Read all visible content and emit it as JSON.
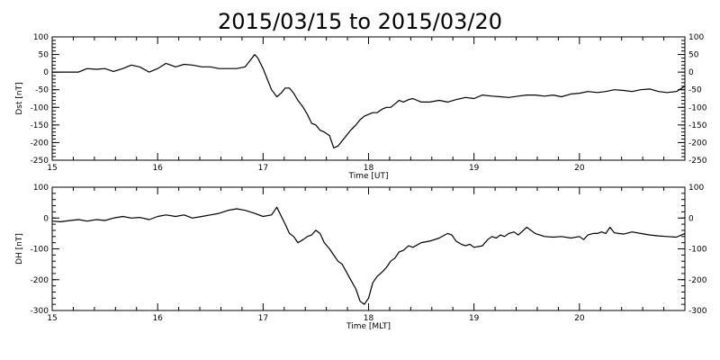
{
  "title": "2015/03/15 to 2015/03/20",
  "chart_data": [
    {
      "type": "line",
      "ylabel": "Dst [nT]",
      "xlabel": "Time [UT]",
      "xlim": [
        15,
        21
      ],
      "ylim": [
        -250,
        100
      ],
      "xticks": [
        15,
        16,
        17,
        18,
        19,
        20
      ],
      "yticks": [
        -250,
        -200,
        -150,
        -100,
        -50,
        0,
        50,
        100
      ],
      "grid": false,
      "series": [
        {
          "x": [
            15.0,
            15.08,
            15.17,
            15.25,
            15.33,
            15.42,
            15.5,
            15.58,
            15.67,
            15.75,
            15.83,
            15.92,
            16.0,
            16.08,
            16.17,
            16.25,
            16.33,
            16.42,
            16.5,
            16.58,
            16.67,
            16.75,
            16.83,
            16.92,
            16.95,
            17.0,
            17.04,
            17.08,
            17.13,
            17.17,
            17.21,
            17.25,
            17.29,
            17.33,
            17.38,
            17.42,
            17.46,
            17.5,
            17.54,
            17.58,
            17.63,
            17.67,
            17.71,
            17.75,
            17.79,
            17.83,
            17.88,
            17.92,
            17.96,
            18.0,
            18.04,
            18.08,
            18.13,
            18.17,
            18.21,
            18.25,
            18.29,
            18.33,
            18.38,
            18.42,
            18.5,
            18.58,
            18.67,
            18.75,
            18.83,
            18.92,
            19.0,
            19.08,
            19.17,
            19.25,
            19.33,
            19.42,
            19.5,
            19.58,
            19.67,
            19.75,
            19.83,
            19.92,
            20.0,
            20.08,
            20.17,
            20.25,
            20.33,
            20.42,
            20.5,
            20.58,
            20.67,
            20.75,
            20.83,
            20.92,
            21.0
          ],
          "values": [
            0,
            0,
            0,
            0,
            10,
            8,
            10,
            2,
            10,
            20,
            15,
            0,
            10,
            25,
            15,
            22,
            20,
            15,
            15,
            10,
            10,
            10,
            15,
            50,
            40,
            10,
            -20,
            -50,
            -70,
            -60,
            -45,
            -45,
            -60,
            -80,
            -100,
            -120,
            -145,
            -150,
            -165,
            -170,
            -180,
            -215,
            -210,
            -195,
            -180,
            -165,
            -150,
            -135,
            -125,
            -120,
            -115,
            -115,
            -105,
            -100,
            -100,
            -90,
            -80,
            -85,
            -78,
            -75,
            -85,
            -85,
            -80,
            -85,
            -78,
            -72,
            -75,
            -65,
            -68,
            -70,
            -72,
            -68,
            -65,
            -65,
            -68,
            -65,
            -70,
            -62,
            -60,
            -55,
            -58,
            -55,
            -50,
            -52,
            -55,
            -50,
            -48,
            -55,
            -58,
            -55,
            -40
          ]
        }
      ]
    },
    {
      "type": "line",
      "ylabel": "DH [nT]",
      "xlabel": "Time [MLT]",
      "xlim": [
        15,
        21
      ],
      "ylim": [
        -300,
        100
      ],
      "xticks": [
        15,
        16,
        17,
        18,
        19,
        20
      ],
      "yticks": [
        -300,
        -200,
        -100,
        0,
        100
      ],
      "grid": false,
      "series": [
        {
          "x": [
            15.0,
            15.08,
            15.17,
            15.25,
            15.33,
            15.42,
            15.5,
            15.58,
            15.67,
            15.75,
            15.83,
            15.92,
            16.0,
            16.08,
            16.17,
            16.25,
            16.33,
            16.42,
            16.5,
            16.58,
            16.67,
            16.75,
            16.83,
            16.92,
            17.0,
            17.08,
            17.13,
            17.21,
            17.25,
            17.29,
            17.33,
            17.38,
            17.42,
            17.46,
            17.5,
            17.54,
            17.58,
            17.63,
            17.67,
            17.71,
            17.75,
            17.79,
            17.83,
            17.88,
            17.92,
            17.96,
            18.0,
            18.04,
            18.08,
            18.13,
            18.17,
            18.21,
            18.25,
            18.29,
            18.33,
            18.38,
            18.42,
            18.5,
            18.58,
            18.67,
            18.75,
            18.79,
            18.83,
            18.88,
            18.92,
            18.96,
            19.0,
            19.08,
            19.13,
            19.17,
            19.21,
            19.25,
            19.29,
            19.33,
            19.38,
            19.42,
            19.5,
            19.58,
            19.67,
            19.75,
            19.83,
            19.92,
            20.0,
            20.04,
            20.08,
            20.13,
            20.17,
            20.21,
            20.25,
            20.29,
            20.33,
            20.42,
            20.5,
            20.58,
            20.67,
            20.75,
            20.83,
            20.92,
            21.0
          ],
          "values": [
            -10,
            -12,
            -8,
            -5,
            -10,
            -5,
            -8,
            0,
            5,
            0,
            2,
            -5,
            5,
            10,
            5,
            10,
            0,
            5,
            10,
            15,
            25,
            30,
            25,
            15,
            5,
            10,
            35,
            -20,
            -50,
            -60,
            -80,
            -70,
            -60,
            -55,
            -40,
            -50,
            -80,
            -100,
            -120,
            -140,
            -150,
            -175,
            -200,
            -230,
            -270,
            -280,
            -260,
            -210,
            -190,
            -175,
            -160,
            -140,
            -130,
            -110,
            -105,
            -90,
            -95,
            -80,
            -75,
            -65,
            -50,
            -55,
            -75,
            -85,
            -90,
            -85,
            -95,
            -90,
            -70,
            -60,
            -65,
            -55,
            -60,
            -50,
            -45,
            -55,
            -30,
            -50,
            -60,
            -62,
            -60,
            -65,
            -60,
            -70,
            -55,
            -50,
            -50,
            -45,
            -50,
            -30,
            -48,
            -52,
            -45,
            -50,
            -55,
            -58,
            -60,
            -62,
            -50
          ]
        }
      ]
    }
  ]
}
